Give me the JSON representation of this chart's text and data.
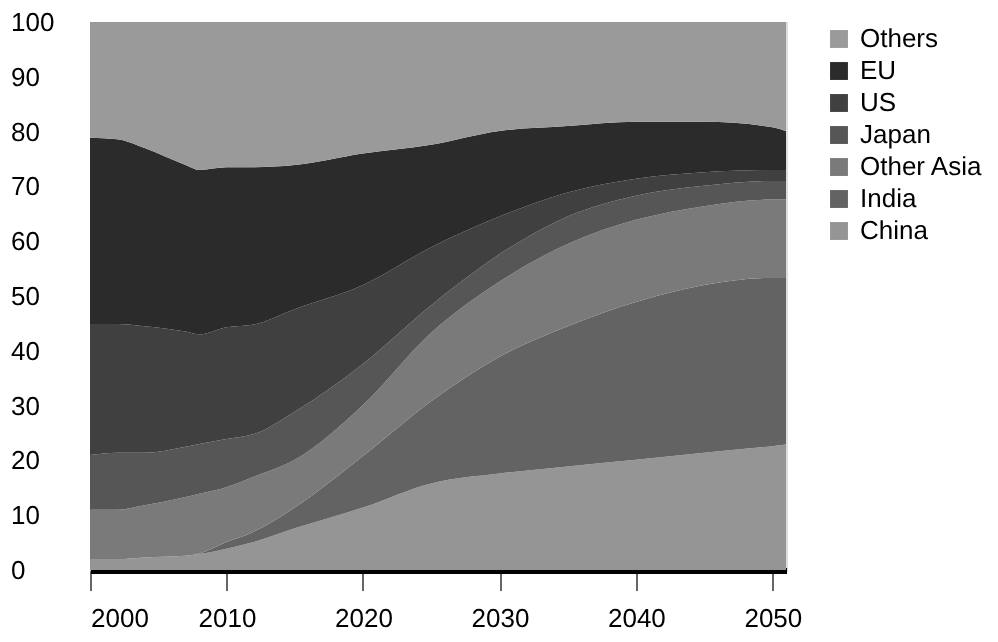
{
  "chart_data": {
    "type": "area",
    "stacked": true,
    "x": [
      2000,
      2002,
      2004,
      2007,
      2008,
      2010,
      2012,
      2015,
      2020,
      2025,
      2030,
      2035,
      2040,
      2045,
      2050,
      2051
    ],
    "series": [
      {
        "name": "China",
        "color": "#959595",
        "values": [
          2.0,
          2.0,
          2.3,
          2.6,
          2.9,
          3.9,
          5.1,
          7.6,
          11.4,
          15.8,
          17.6,
          18.9,
          20.1,
          21.4,
          22.6,
          22.9
        ]
      },
      {
        "name": "India",
        "color": "#636363",
        "values": [
          0,
          0,
          0,
          0,
          0.1,
          1.2,
          1.9,
          3.8,
          9.4,
          15.0,
          21.3,
          25.6,
          28.8,
          30.6,
          30.7,
          30.4
        ]
      },
      {
        "name": "Other Asia",
        "color": "#7a7a7a",
        "values": [
          9.0,
          9.0,
          9.5,
          10.7,
          10.9,
          10.0,
          10.0,
          8.7,
          9.3,
          12.5,
          13.7,
          15.0,
          15.0,
          14.4,
          14.3,
          14.3
        ]
      },
      {
        "name": "Japan",
        "color": "#565656",
        "values": [
          10.0,
          10.4,
          9.6,
          9.2,
          9.1,
          8.8,
          7.8,
          8.8,
          7.5,
          5.0,
          5.0,
          5.0,
          4.4,
          3.7,
          3.4,
          3.4
        ]
      },
      {
        "name": "US",
        "color": "#404040",
        "values": [
          23.9,
          23.5,
          23.1,
          21.0,
          20.0,
          20.4,
          20.0,
          18.7,
          14.4,
          10.6,
          6.9,
          4.4,
          3.1,
          2.5,
          2.0,
          2.0
        ]
      },
      {
        "name": "EU",
        "color": "#2b2b2b",
        "values": [
          34.0,
          33.7,
          32.5,
          30.4,
          30.0,
          29.2,
          28.7,
          26.3,
          24.0,
          18.7,
          15.6,
          12.1,
          10.4,
          9.2,
          7.8,
          7.1
        ]
      },
      {
        "name": "Others",
        "color": "#9a9a9a",
        "values": [
          21.1,
          21.4,
          23.0,
          26.1,
          27.0,
          26.5,
          26.5,
          26.1,
          24.0,
          22.4,
          19.9,
          19.0,
          18.2,
          18.2,
          19.2,
          19.9
        ]
      }
    ],
    "xlim": [
      2000,
      2051
    ],
    "xticks": [
      2000,
      2010,
      2020,
      2030,
      2040,
      2050
    ],
    "ylim": [
      0,
      100
    ],
    "yticks": [
      0,
      10,
      20,
      30,
      40,
      50,
      60,
      70,
      80,
      90,
      100
    ],
    "grid": false,
    "legend": "right"
  }
}
